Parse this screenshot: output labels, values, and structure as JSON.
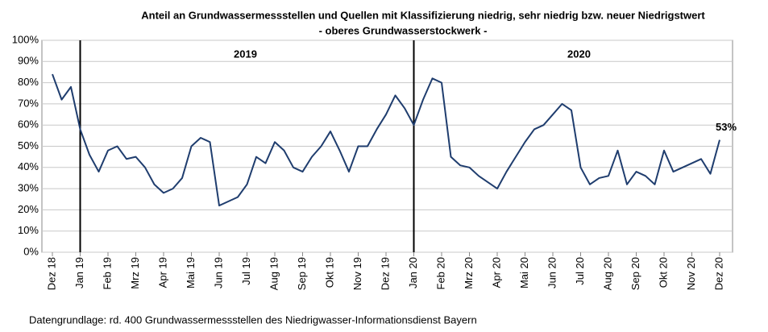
{
  "chart_data": {
    "type": "line",
    "title": "Anteil an Grundwassermessstellen und Quellen mit Klassifizierung niedrig, sehr niedrig bzw. neuer Niedrigstwert",
    "subtitle": "- oberes Grundwasserstockwerk -",
    "footnote": "Datengrundlage:  rd. 400 Grundwassermessstellen  des Niedrigwasser-Informationsdienst  Bayern",
    "categories": [
      "Dez 18",
      null,
      null,
      "Jan 19",
      null,
      null,
      "Feb 19",
      null,
      null,
      "Mrz 19",
      null,
      null,
      "Apr 19",
      null,
      null,
      "Mai 19",
      null,
      null,
      "Jun 19",
      null,
      null,
      "Jul 19",
      null,
      null,
      "Aug 19",
      null,
      null,
      "Sep 19",
      null,
      null,
      "Okt 19",
      null,
      null,
      "Nov 19",
      null,
      null,
      "Dez 19",
      null,
      null,
      "Jan 20",
      null,
      null,
      "Feb 20",
      null,
      null,
      "Mrz 20",
      null,
      null,
      "Apr 20",
      null,
      null,
      "Mai 20",
      null,
      null,
      "Jun 20",
      null,
      null,
      "Jul 20",
      null,
      null,
      "Aug 20",
      null,
      null,
      "Sep 20",
      null,
      null,
      "Okt 20",
      null,
      null,
      "Nov 20",
      null,
      null,
      "Dez 20"
    ],
    "series": [
      {
        "color": "#1f3d6e",
        "values": [
          84,
          72,
          78,
          58,
          46,
          38,
          48,
          50,
          44,
          45,
          40,
          32,
          28,
          30,
          35,
          50,
          54,
          52,
          22,
          24,
          26,
          32,
          45,
          42,
          52,
          48,
          40,
          38,
          45,
          50,
          57,
          48,
          38,
          50,
          50,
          58,
          65,
          74,
          68,
          60,
          72,
          82,
          80,
          45,
          41,
          40,
          36,
          33,
          30,
          38,
          45,
          52,
          58,
          60,
          65,
          70,
          67,
          40,
          32,
          35,
          36,
          48,
          32,
          38,
          36,
          32,
          48,
          38,
          40,
          42,
          44,
          37,
          53
        ],
        "value_labels": [
          null,
          null,
          null,
          null,
          null,
          null,
          null,
          null,
          null,
          null,
          null,
          null,
          null,
          null,
          null,
          null,
          null,
          null,
          null,
          null,
          null,
          null,
          null,
          null,
          null,
          null,
          null,
          null,
          null,
          null,
          null,
          null,
          null,
          null,
          null,
          null,
          null,
          null,
          null,
          null,
          null,
          null,
          null,
          null,
          null,
          null,
          null,
          null,
          null,
          null,
          null,
          null,
          null,
          null,
          null,
          null,
          null,
          null,
          null,
          null,
          null,
          null,
          null,
          null,
          null,
          null,
          null,
          null,
          null,
          null,
          null,
          null,
          "53%"
        ]
      }
    ],
    "year_markers": [
      {
        "label": "2019",
        "at": "Jan 19"
      },
      {
        "label": "2020",
        "at": "Jan 20"
      }
    ],
    "ylim": [
      0,
      100
    ],
    "yticks": [
      {
        "value": 0,
        "label": "0%"
      },
      {
        "value": 10,
        "label": "10%"
      },
      {
        "value": 20,
        "label": "20%"
      },
      {
        "value": 30,
        "label": "30%"
      },
      {
        "value": 40,
        "label": "40%"
      },
      {
        "value": 50,
        "label": "50%"
      },
      {
        "value": 60,
        "label": "60%"
      },
      {
        "value": 70,
        "label": "70%"
      },
      {
        "value": 80,
        "label": "80%"
      },
      {
        "value": 90,
        "label": "90%"
      },
      {
        "value": 100,
        "label": "100%"
      }
    ],
    "grid": true
  }
}
